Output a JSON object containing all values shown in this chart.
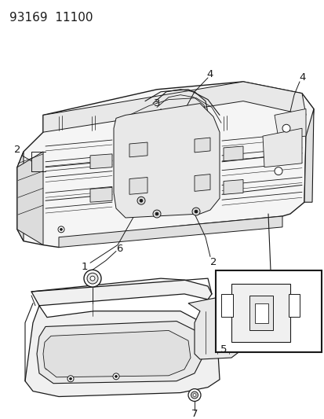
{
  "title": "93169  11100",
  "bg_color": "#ffffff",
  "line_color": "#1a1a1a",
  "title_fontsize": 11,
  "label_fontsize": 9.5
}
